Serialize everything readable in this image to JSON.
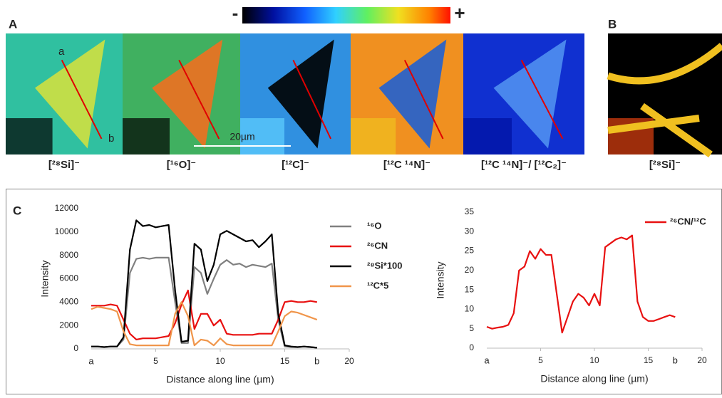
{
  "figure": {
    "panel_labels": [
      "A",
      "B",
      "C"
    ],
    "colorbar": {
      "min_label": "-",
      "max_label": "+"
    },
    "scale_bar": "20µm",
    "line_ends": [
      "a",
      "b"
    ],
    "images": [
      {
        "label": "[²⁸Si]⁻"
      },
      {
        "label": "[¹⁶O]⁻"
      },
      {
        "label": "[¹²C]⁻"
      },
      {
        "label": "[¹²C ¹⁴N]⁻"
      },
      {
        "label": "[¹²C ¹⁴N]⁻/ [¹²C₂]⁻"
      },
      {
        "label": "[²⁸Si]⁻"
      }
    ]
  },
  "chart_data": [
    {
      "type": "line",
      "x_label": "Distance along line (µm)",
      "y_label": "Intensity",
      "x": [
        0,
        0.5,
        1,
        1.5,
        2,
        2.5,
        3,
        3.5,
        4,
        4.5,
        5,
        5.5,
        6,
        6.5,
        7,
        7.5,
        8,
        8.5,
        9,
        9.5,
        10,
        10.5,
        11,
        11.5,
        12,
        12.5,
        13,
        13.5,
        14,
        14.5,
        15,
        15.5,
        16,
        16.5,
        17,
        17.5
      ],
      "series": [
        {
          "name": "¹⁶O",
          "color": "#808080",
          "values": [
            200,
            200,
            150,
            200,
            200,
            800,
            6500,
            7700,
            7800,
            7700,
            7800,
            7800,
            7800,
            4000,
            500,
            500,
            7000,
            6500,
            4700,
            6000,
            7200,
            7600,
            7200,
            7300,
            7000,
            7200,
            7100,
            7000,
            7300,
            2500,
            200,
            150,
            150,
            200,
            150,
            100
          ]
        },
        {
          "name": "²⁶CN",
          "color": "#e81010",
          "values": [
            3700,
            3700,
            3700,
            3800,
            3700,
            2500,
            1300,
            800,
            900,
            900,
            900,
            1000,
            1100,
            2200,
            3800,
            5000,
            1700,
            3000,
            3000,
            2000,
            2500,
            1300,
            1200,
            1200,
            1200,
            1200,
            1300,
            1300,
            1300,
            2500,
            4000,
            4100,
            4000,
            4000,
            4100,
            4000
          ]
        },
        {
          "name": "²⁸Si*100",
          "color": "#000000",
          "values": [
            200,
            200,
            150,
            200,
            200,
            1000,
            8500,
            11000,
            10500,
            10600,
            10400,
            10500,
            10600,
            5000,
            600,
            700,
            9000,
            8500,
            5800,
            7200,
            9800,
            10100,
            9800,
            9500,
            9200,
            9300,
            8700,
            9200,
            9800,
            3000,
            300,
            200,
            150,
            200,
            150,
            100
          ]
        },
        {
          "name": "¹²C*5",
          "color": "#f0954a",
          "values": [
            3400,
            3600,
            3500,
            3400,
            3200,
            1500,
            400,
            300,
            300,
            300,
            300,
            300,
            300,
            3000,
            4000,
            2800,
            300,
            800,
            700,
            300,
            900,
            400,
            300,
            300,
            300,
            300,
            300,
            300,
            300,
            1500,
            2800,
            3200,
            3100,
            2900,
            2700,
            2500
          ]
        }
      ],
      "xlim": [
        0,
        20
      ],
      "xticks": [
        5,
        10,
        15,
        20
      ],
      "ylim": [
        0,
        12000
      ],
      "yticks": [
        0,
        2000,
        4000,
        6000,
        8000,
        10000,
        12000
      ],
      "annotations": [
        {
          "text": "a",
          "x": 0
        },
        {
          "text": "b",
          "x": 17.5
        }
      ]
    },
    {
      "type": "line",
      "x_label": "Distance along line (µm)",
      "y_label": "Intensity",
      "x": [
        0,
        0.5,
        1,
        1.5,
        2,
        2.5,
        3,
        3.5,
        4,
        4.5,
        5,
        5.5,
        6,
        6.5,
        7,
        7.5,
        8,
        8.5,
        9,
        9.5,
        10,
        10.5,
        11,
        11.5,
        12,
        12.5,
        13,
        13.5,
        14,
        14.5,
        15,
        15.5,
        16,
        16.5,
        17,
        17.5
      ],
      "series": [
        {
          "name": "²⁶CN/¹²C",
          "color": "#e81010",
          "values": [
            5.5,
            5,
            5.3,
            5.5,
            6,
            9,
            20,
            21,
            25,
            23,
            25.5,
            24,
            24,
            14,
            4,
            8,
            12,
            14,
            13,
            11,
            14,
            11,
            26,
            27,
            28,
            28.5,
            28,
            29,
            12,
            8,
            7,
            7,
            7.5,
            8,
            8.5,
            8
          ]
        }
      ],
      "xlim": [
        0,
        20
      ],
      "xticks": [
        5,
        10,
        15,
        20
      ],
      "ylim": [
        0,
        35
      ],
      "yticks": [
        0,
        5,
        10,
        15,
        20,
        25,
        30,
        35
      ],
      "annotations": [
        {
          "text": "a",
          "x": 0
        },
        {
          "text": "b",
          "x": 17.5
        }
      ]
    }
  ]
}
